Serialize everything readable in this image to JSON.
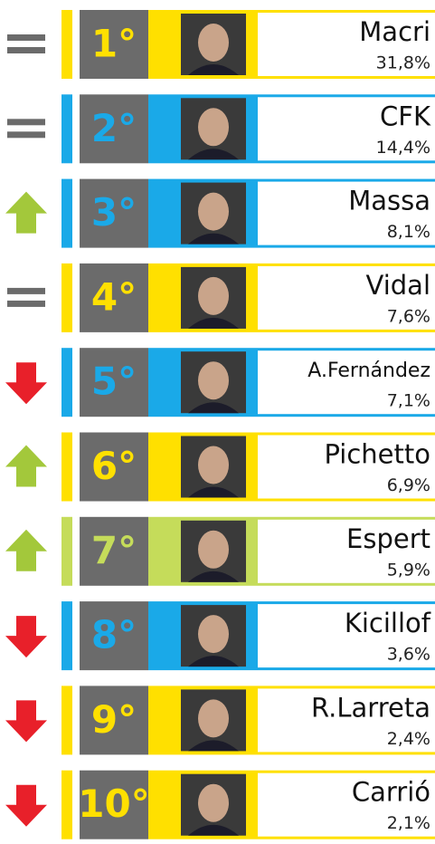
{
  "rows": [
    {
      "rank": "1°",
      "name": "Macri",
      "percent": "31,8%"
    },
    {
      "rank": "2°",
      "name": "CFK",
      "percent": "14,4%"
    },
    {
      "rank": "3°",
      "name": "Massa",
      "percent": "8,1%"
    },
    {
      "rank": "4°",
      "name": "Vidal",
      "percent": "7,6%"
    },
    {
      "rank": "5°",
      "name": "A.Fernández",
      "percent": "7,1%"
    },
    {
      "rank": "6°",
      "name": "Pichetto",
      "percent": "6,9%"
    },
    {
      "rank": "7°",
      "name": "Espert",
      "percent": "5,9%"
    },
    {
      "rank": "8°",
      "name": "Kicillof",
      "percent": "3,6%"
    },
    {
      "rank": "9°",
      "name": "R.Larreta",
      "percent": "2,4%"
    },
    {
      "rank": "10°",
      "name": "Carrió",
      "percent": "2,1%"
    }
  ]
}
